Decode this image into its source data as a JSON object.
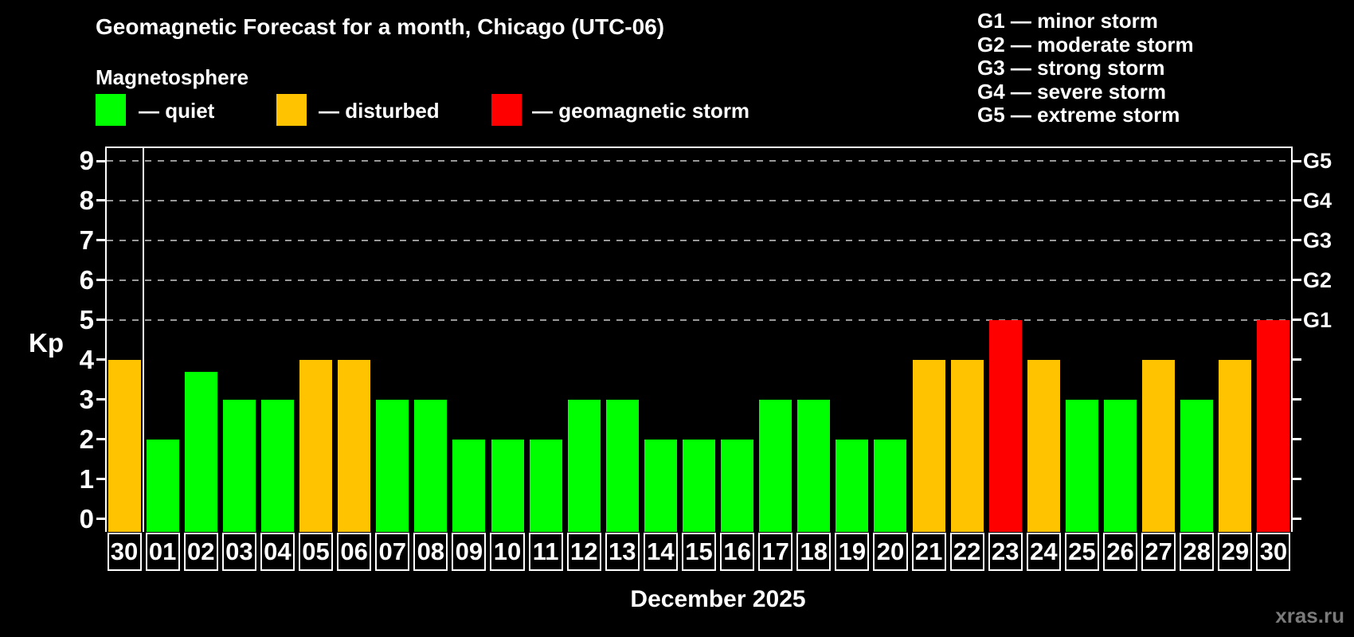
{
  "header": {
    "title": "Geomagnetic Forecast for a month, Chicago (UTC-06)",
    "subtitle": "Magnetosphere"
  },
  "legend": {
    "items": [
      {
        "name": "quiet",
        "label": "— quiet",
        "color": "#00ff00"
      },
      {
        "name": "disturbed",
        "label": "— disturbed",
        "color": "#ffc300"
      },
      {
        "name": "storm",
        "label": "— geomagnetic storm",
        "color": "#ff0000"
      }
    ]
  },
  "storm_scale_legend": {
    "items": [
      {
        "label": "G1 — minor storm"
      },
      {
        "label": "G2 — moderate storm"
      },
      {
        "label": "G3 — strong storm"
      },
      {
        "label": "G4 — severe storm"
      },
      {
        "label": "G5 — extreme storm"
      }
    ]
  },
  "chart_data": {
    "type": "bar",
    "title": "Geomagnetic Forecast for a month, Chicago (UTC-06)",
    "xlabel": "December 2025",
    "ylabel": "Kp",
    "ylim": [
      0,
      9
    ],
    "y_ticks": [
      0,
      1,
      2,
      3,
      4,
      5,
      6,
      7,
      8,
      9
    ],
    "grid": "horizontal dashed lines at Kp 5-9 only",
    "legend_position": "top-left (colors) and top-right (G-scale)",
    "categories": [
      "30",
      "01",
      "02",
      "03",
      "04",
      "05",
      "06",
      "07",
      "08",
      "09",
      "10",
      "11",
      "12",
      "13",
      "14",
      "15",
      "16",
      "17",
      "18",
      "19",
      "20",
      "21",
      "22",
      "23",
      "24",
      "25",
      "26",
      "27",
      "28",
      "29",
      "30"
    ],
    "values": [
      4,
      2,
      3.7,
      3,
      3,
      4,
      4,
      3,
      3,
      2,
      2,
      2,
      3,
      3,
      2,
      2,
      2,
      3,
      3,
      2,
      2,
      4,
      4,
      5,
      4,
      3,
      3,
      4,
      3,
      4,
      5
    ],
    "statuses": [
      "disturbed",
      "quiet",
      "quiet",
      "quiet",
      "quiet",
      "disturbed",
      "disturbed",
      "quiet",
      "quiet",
      "quiet",
      "quiet",
      "quiet",
      "quiet",
      "quiet",
      "quiet",
      "quiet",
      "quiet",
      "quiet",
      "quiet",
      "quiet",
      "quiet",
      "disturbed",
      "disturbed",
      "storm",
      "disturbed",
      "quiet",
      "quiet",
      "disturbed",
      "quiet",
      "disturbed",
      "storm"
    ],
    "right_axis_labels": [
      {
        "label": "G1",
        "kp": 5
      },
      {
        "label": "G2",
        "kp": 6
      },
      {
        "label": "G3",
        "kp": 7
      },
      {
        "label": "G4",
        "kp": 8
      },
      {
        "label": "G5",
        "kp": 9
      }
    ]
  },
  "footer": {
    "watermark": "xras.ru"
  },
  "colors": {
    "background": "#000000",
    "quiet": "#00ff00",
    "disturbed": "#ffc300",
    "storm": "#ff0000",
    "grid": "#999999",
    "axis": "#ffffff",
    "watermark": "#7a7a7a"
  }
}
